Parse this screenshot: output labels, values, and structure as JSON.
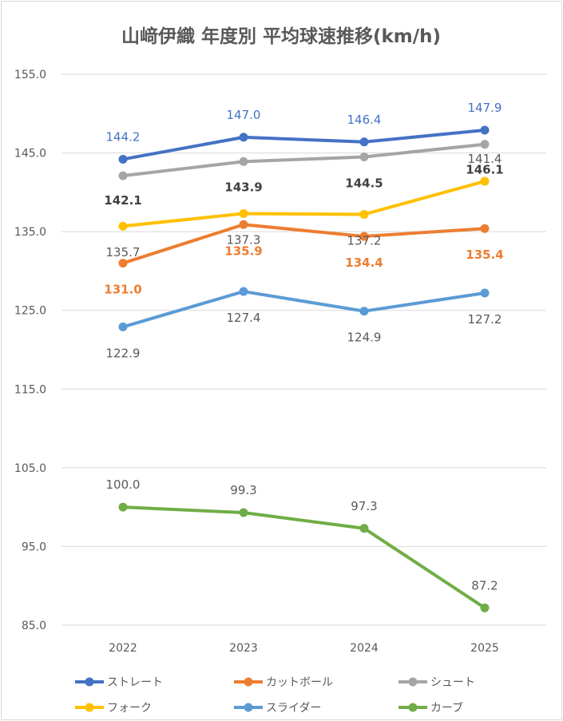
{
  "chart_data": {
    "type": "line",
    "title": "山﨑伊織 年度別 平均球速推移(km/h)",
    "categories": [
      "2022",
      "2023",
      "2024",
      "2025"
    ],
    "ylim": [
      85.0,
      155.0
    ],
    "yticks": [
      "155.0",
      "145.0",
      "135.0",
      "125.0",
      "115.0",
      "105.0",
      "95.0",
      "85.0"
    ],
    "grid": true,
    "legend_position": "bottom",
    "series": [
      {
        "name": "ストレート",
        "color": "#4472c4",
        "values": [
          144.2,
          147.0,
          146.4,
          147.9
        ],
        "labels": [
          "144.2",
          "147.0",
          "146.4",
          "147.9"
        ],
        "label_color": "#4472c4",
        "label_bold": false
      },
      {
        "name": "カットボール",
        "color": "#ed7d31",
        "values": [
          131.0,
          135.9,
          134.4,
          135.4
        ],
        "labels": [
          "131.0",
          "135.9",
          "134.4",
          "135.4"
        ],
        "label_color": "#ed7d31",
        "label_bold": true
      },
      {
        "name": "シュート",
        "color": "#a5a5a5",
        "values": [
          142.1,
          143.9,
          144.5,
          146.1
        ],
        "labels": [
          "142.1",
          "143.9",
          "144.5",
          "146.1"
        ],
        "label_color": "#404040",
        "label_bold": true
      },
      {
        "name": "フォーク",
        "color": "#ffc000",
        "values": [
          135.7,
          137.3,
          137.2,
          141.4
        ],
        "labels": [
          "135.7",
          "137.3",
          "137.2",
          "141.4"
        ],
        "label_color": "#595959",
        "label_bold": false
      },
      {
        "name": "スライダー",
        "color": "#5b9bd5",
        "values": [
          122.9,
          127.4,
          124.9,
          127.2
        ],
        "labels": [
          "122.9",
          "127.4",
          "124.9",
          "127.2"
        ],
        "label_color": "#595959",
        "label_bold": false
      },
      {
        "name": "カーブ",
        "color": "#70ad47",
        "values": [
          100.0,
          99.3,
          97.3,
          87.2
        ],
        "labels": [
          "100.0",
          "99.3",
          "97.3",
          "87.2"
        ],
        "label_color": "#595959",
        "label_bold": false
      }
    ]
  }
}
